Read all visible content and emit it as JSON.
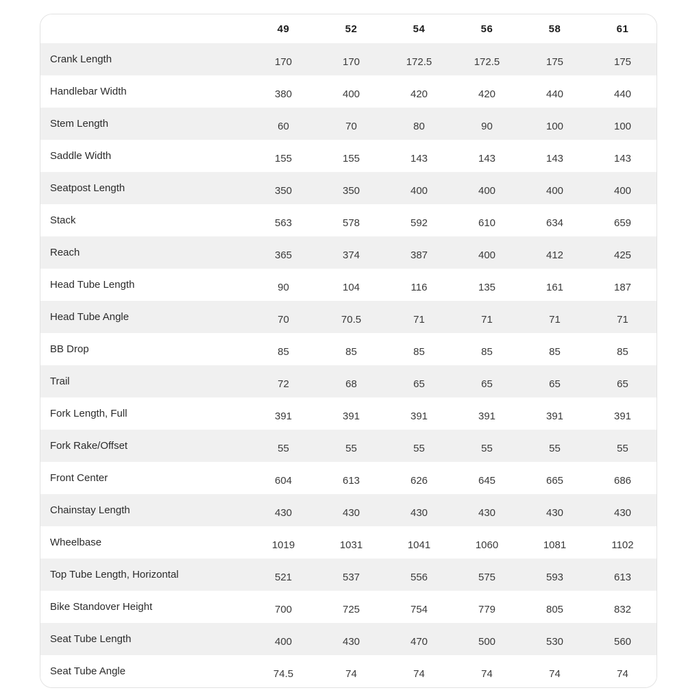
{
  "colors": {
    "card_background": "#ffffff",
    "card_border": "#e1e1e1",
    "row_stripe": "#f0f0f0",
    "header_text": "#1d1d1d",
    "label_text": "#2b2b2b",
    "value_text": "#3a3a3a"
  },
  "table": {
    "columns": [
      "49",
      "52",
      "54",
      "56",
      "58",
      "61"
    ],
    "rows": [
      {
        "label": "Crank Length",
        "values": [
          "170",
          "170",
          "172.5",
          "172.5",
          "175",
          "175"
        ]
      },
      {
        "label": "Handlebar Width",
        "values": [
          "380",
          "400",
          "420",
          "420",
          "440",
          "440"
        ]
      },
      {
        "label": "Stem Length",
        "values": [
          "60",
          "70",
          "80",
          "90",
          "100",
          "100"
        ]
      },
      {
        "label": "Saddle Width",
        "values": [
          "155",
          "155",
          "143",
          "143",
          "143",
          "143"
        ]
      },
      {
        "label": "Seatpost Length",
        "values": [
          "350",
          "350",
          "400",
          "400",
          "400",
          "400"
        ]
      },
      {
        "label": "Stack",
        "values": [
          "563",
          "578",
          "592",
          "610",
          "634",
          "659"
        ]
      },
      {
        "label": "Reach",
        "values": [
          "365",
          "374",
          "387",
          "400",
          "412",
          "425"
        ]
      },
      {
        "label": "Head Tube Length",
        "values": [
          "90",
          "104",
          "116",
          "135",
          "161",
          "187"
        ]
      },
      {
        "label": "Head Tube Angle",
        "values": [
          "70",
          "70.5",
          "71",
          "71",
          "71",
          "71"
        ]
      },
      {
        "label": "BB Drop",
        "values": [
          "85",
          "85",
          "85",
          "85",
          "85",
          "85"
        ]
      },
      {
        "label": "Trail",
        "values": [
          "72",
          "68",
          "65",
          "65",
          "65",
          "65"
        ]
      },
      {
        "label": "Fork Length, Full",
        "values": [
          "391",
          "391",
          "391",
          "391",
          "391",
          "391"
        ]
      },
      {
        "label": "Fork Rake/Offset",
        "values": [
          "55",
          "55",
          "55",
          "55",
          "55",
          "55"
        ]
      },
      {
        "label": "Front Center",
        "values": [
          "604",
          "613",
          "626",
          "645",
          "665",
          "686"
        ]
      },
      {
        "label": "Chainstay Length",
        "values": [
          "430",
          "430",
          "430",
          "430",
          "430",
          "430"
        ]
      },
      {
        "label": "Wheelbase",
        "values": [
          "1019",
          "1031",
          "1041",
          "1060",
          "1081",
          "1102"
        ]
      },
      {
        "label": "Top Tube Length, Horizontal",
        "values": [
          "521",
          "537",
          "556",
          "575",
          "593",
          "613"
        ]
      },
      {
        "label": "Bike Standover Height",
        "values": [
          "700",
          "725",
          "754",
          "779",
          "805",
          "832"
        ]
      },
      {
        "label": "Seat Tube Length",
        "values": [
          "400",
          "430",
          "470",
          "500",
          "530",
          "560"
        ]
      },
      {
        "label": "Seat Tube Angle",
        "values": [
          "74.5",
          "74",
          "74",
          "74",
          "74",
          "74"
        ]
      }
    ]
  }
}
